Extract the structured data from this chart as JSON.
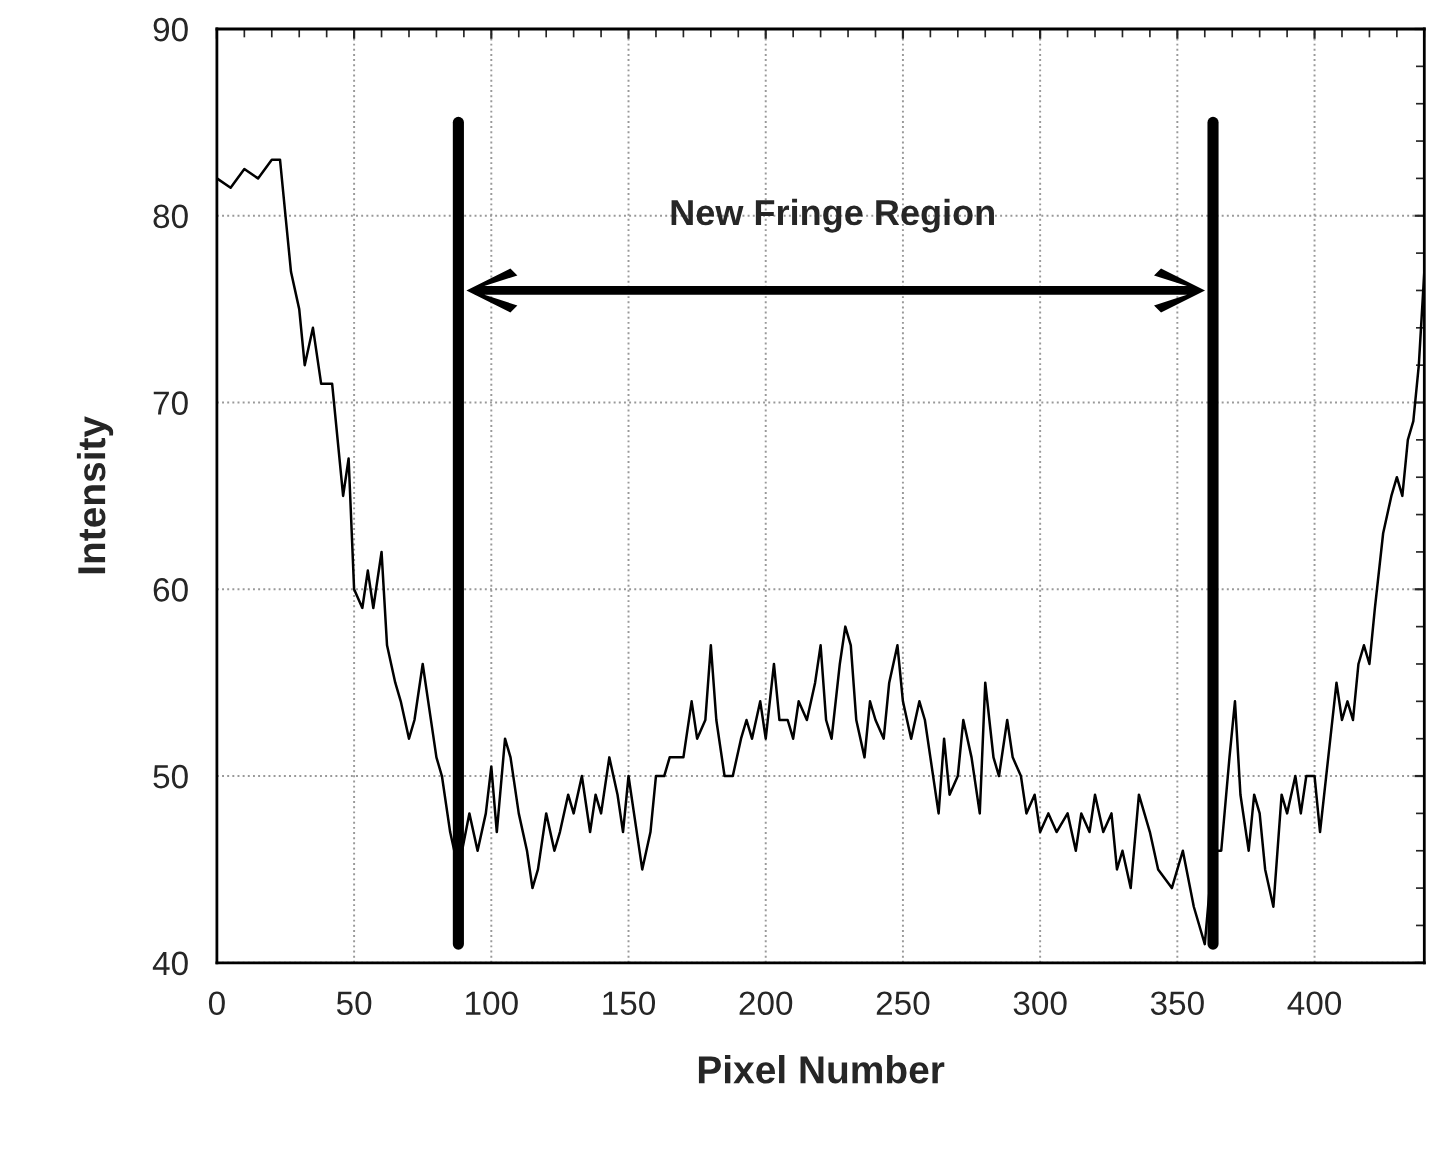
{
  "chart_data": {
    "type": "line",
    "xlabel": "Pixel Number",
    "ylabel": "Intensity",
    "x": [
      0,
      5,
      10,
      15,
      20,
      23,
      25,
      27,
      30,
      32,
      35,
      38,
      42,
      44,
      46,
      48,
      50,
      53,
      55,
      57,
      60,
      62,
      65,
      67,
      70,
      72,
      75,
      77,
      80,
      82,
      85,
      88,
      92,
      95,
      98,
      100,
      102,
      105,
      107,
      110,
      113,
      115,
      117,
      120,
      123,
      125,
      128,
      130,
      133,
      136,
      138,
      140,
      143,
      146,
      148,
      150,
      152,
      155,
      158,
      160,
      163,
      165,
      170,
      173,
      175,
      178,
      180,
      182,
      185,
      188,
      191,
      193,
      195,
      198,
      200,
      203,
      205,
      208,
      210,
      212,
      215,
      218,
      220,
      222,
      224,
      227,
      229,
      231,
      233,
      236,
      238,
      240,
      243,
      245,
      248,
      250,
      253,
      256,
      258,
      260,
      263,
      265,
      267,
      270,
      272,
      275,
      278,
      280,
      283,
      285,
      288,
      290,
      293,
      295,
      298,
      300,
      303,
      306,
      310,
      313,
      315,
      318,
      320,
      323,
      326,
      328,
      330,
      333,
      336,
      340,
      343,
      348,
      352,
      356,
      360,
      363,
      366,
      369,
      371,
      373,
      376,
      378,
      380,
      382,
      385,
      388,
      390,
      393,
      395,
      397,
      400,
      402,
      405,
      408,
      410,
      412,
      414,
      416,
      418,
      420,
      422,
      425,
      428,
      430,
      432,
      434,
      436,
      438,
      440
    ],
    "series": [
      {
        "color": "#000000",
        "values": [
          82,
          81.5,
          82.5,
          82,
          83,
          83,
          80,
          77,
          75,
          72,
          74,
          71,
          71,
          68,
          65,
          67,
          60,
          59,
          61,
          59,
          62,
          57,
          55,
          54,
          52,
          53,
          56,
          54,
          51,
          50,
          47,
          45,
          48,
          46,
          48,
          50.5,
          47,
          52,
          51,
          48,
          46,
          44,
          45,
          48,
          46,
          47,
          49,
          48,
          50,
          47,
          49,
          48,
          51,
          49,
          47,
          50,
          48,
          45,
          47,
          50,
          50,
          51,
          51,
          54,
          52,
          53,
          57,
          53,
          50,
          50,
          52,
          53,
          52,
          54,
          52,
          56,
          53,
          53,
          52,
          54,
          53,
          55,
          57,
          53,
          52,
          56,
          58,
          57,
          53,
          51,
          54,
          53,
          52,
          55,
          57,
          54,
          52,
          54,
          53,
          51,
          48,
          52,
          49,
          50,
          53,
          51,
          48,
          55,
          51,
          50,
          53,
          51,
          50,
          48,
          49,
          47,
          48,
          47,
          48,
          46,
          48,
          47,
          49,
          47,
          48,
          45,
          46,
          44,
          49,
          47,
          45,
          44,
          46,
          43,
          41,
          46,
          46,
          51,
          54,
          49,
          46,
          49,
          48,
          45,
          43,
          49,
          48,
          50,
          48,
          50,
          50,
          47,
          51,
          55,
          53,
          54,
          53,
          56,
          57,
          56,
          59,
          63,
          65,
          66,
          65,
          68,
          69,
          72,
          77
        ]
      }
    ],
    "xlim": [
      0,
      440
    ],
    "ylim": [
      40,
      90
    ],
    "xticks": [
      0,
      50,
      100,
      150,
      200,
      250,
      300,
      350,
      400
    ],
    "yticks": [
      40,
      50,
      60,
      70,
      80,
      90
    ],
    "grid": true,
    "marker": "none",
    "line_style": "solid",
    "ref_lines": [
      {
        "axis": "x",
        "value": 88,
        "color": "#000000"
      },
      {
        "axis": "x",
        "value": 363,
        "color": "#000000"
      }
    ],
    "annotations": [
      "New Fringe Region"
    ]
  }
}
